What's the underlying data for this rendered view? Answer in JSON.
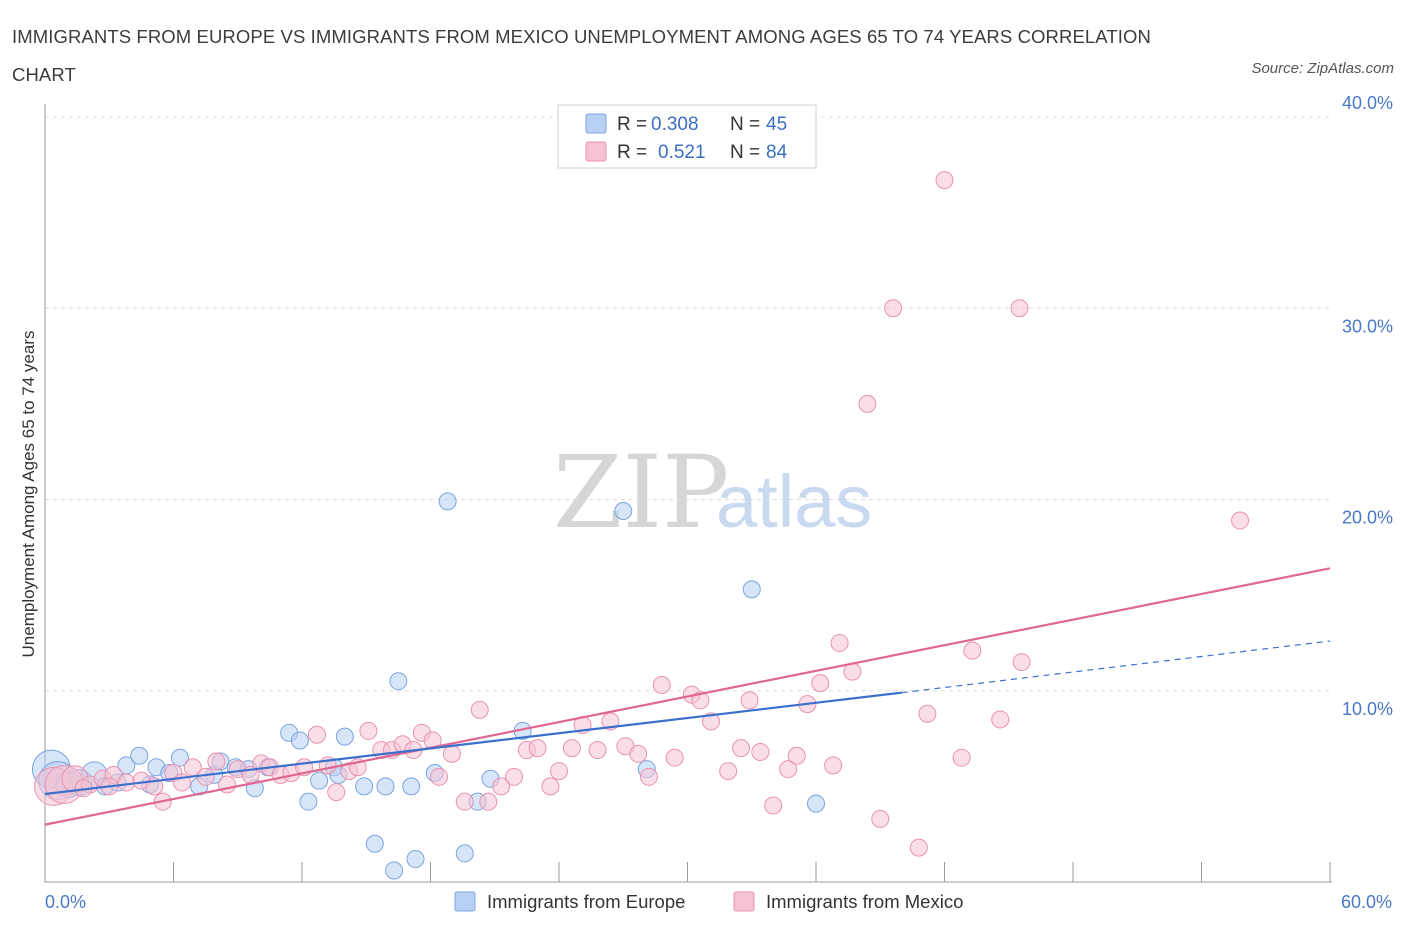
{
  "title": "IMMIGRANTS FROM EUROPE VS IMMIGRANTS FROM MEXICO UNEMPLOYMENT AMONG AGES 65 TO 74 YEARS CORRELATION CHART",
  "source": "Source: ZipAtlas.com",
  "watermark": {
    "zip": "ZIP",
    "atlas": "atlas"
  },
  "legend": {
    "europe": {
      "r_label": "R =",
      "r_value": "0.308",
      "n_label": "N =",
      "n_value": "45"
    },
    "mexico": {
      "r_label": "R =",
      "r_value": "0.521",
      "n_label": "N =",
      "n_value": "84"
    }
  },
  "colors": {
    "europe_fill": "#b7cff3",
    "europe_stroke": "#7ba4e0",
    "europe_line": "#3a70cc",
    "mexico_fill": "#f6c3d3",
    "mexico_stroke": "#e992b0",
    "mexico_line": "#e06791",
    "tick": "#4a78c8",
    "grid": "#dcdcdc"
  },
  "chart_data": {
    "type": "scatter",
    "xlabel": "",
    "ylabel": "Unemployment Among Ages 65 to 74 years",
    "xlim": [
      0,
      60
    ],
    "ylim": [
      0,
      40
    ],
    "y_ticks": [
      {
        "value": 10,
        "label": "10.0%"
      },
      {
        "value": 20,
        "label": "20.0%"
      },
      {
        "value": 30,
        "label": "30.0%"
      },
      {
        "value": 40,
        "label": "40.0%"
      }
    ],
    "x_tick_labels": [
      {
        "value": 0,
        "label": "0.0%"
      },
      {
        "value": 60,
        "label": "60.0%"
      }
    ],
    "x_minor_ticks": [
      0,
      6,
      12,
      18,
      24,
      30,
      36,
      42,
      48,
      54,
      60
    ],
    "series": [
      {
        "name": "Immigrants from Europe",
        "r": 0.308,
        "n": 45,
        "trend": {
          "x0": 0,
          "y0": 4.6,
          "x1": 40,
          "y1": 9.9,
          "dash_to_x": 60,
          "dash_to_y": 12.6
        },
        "points": [
          [
            0.3,
            5.9,
            "L"
          ],
          [
            0.6,
            5.3,
            "L"
          ],
          [
            1.1,
            5.1,
            "M"
          ],
          [
            1.6,
            5.2,
            "M"
          ],
          [
            2.3,
            5.6,
            "M"
          ],
          [
            2.8,
            5.0,
            "S"
          ],
          [
            3.4,
            5.2,
            "S"
          ],
          [
            3.8,
            6.1,
            "S"
          ],
          [
            4.4,
            6.6,
            "S"
          ],
          [
            4.9,
            5.1,
            "S"
          ],
          [
            5.2,
            6.0,
            "S"
          ],
          [
            5.8,
            5.7,
            "S"
          ],
          [
            6.3,
            6.5,
            "S"
          ],
          [
            7.2,
            5.0,
            "S"
          ],
          [
            7.9,
            5.6,
            "S"
          ],
          [
            8.2,
            6.3,
            "S"
          ],
          [
            8.9,
            6.0,
            "S"
          ],
          [
            9.5,
            5.9,
            "S"
          ],
          [
            9.8,
            4.9,
            "S"
          ],
          [
            10.4,
            6.0,
            "S"
          ],
          [
            11.4,
            7.8,
            "S"
          ],
          [
            11.9,
            7.4,
            "S"
          ],
          [
            12.3,
            4.2,
            "S"
          ],
          [
            12.8,
            5.3,
            "S"
          ],
          [
            13.5,
            6.0,
            "S"
          ],
          [
            13.7,
            5.6,
            "S"
          ],
          [
            14.0,
            7.6,
            "S"
          ],
          [
            14.9,
            5.0,
            "S"
          ],
          [
            15.4,
            2.0,
            "S"
          ],
          [
            15.9,
            5.0,
            "S"
          ],
          [
            16.3,
            0.6,
            "S"
          ],
          [
            16.5,
            10.5,
            "S"
          ],
          [
            17.1,
            5.0,
            "S"
          ],
          [
            17.3,
            1.2,
            "S"
          ],
          [
            18.2,
            5.7,
            "S"
          ],
          [
            18.8,
            19.9,
            "S"
          ],
          [
            19.6,
            1.5,
            "S"
          ],
          [
            20.2,
            4.2,
            "S"
          ],
          [
            20.8,
            5.4,
            "S"
          ],
          [
            22.3,
            7.9,
            "S"
          ],
          [
            27.0,
            19.4,
            "S"
          ],
          [
            28.1,
            5.9,
            "S"
          ],
          [
            33.0,
            15.3,
            "S"
          ],
          [
            36.0,
            4.1,
            "S"
          ],
          [
            0.9,
            5.0,
            "S"
          ]
        ]
      },
      {
        "name": "Immigrants from Mexico",
        "r": 0.521,
        "n": 84,
        "trend": {
          "x0": 0,
          "y0": 3.0,
          "x1": 60,
          "y1": 16.4
        },
        "points": [
          [
            0.4,
            5.0,
            "L"
          ],
          [
            0.9,
            5.1,
            "L"
          ],
          [
            1.4,
            5.4,
            "M"
          ],
          [
            2.1,
            5.1,
            "S"
          ],
          [
            2.7,
            5.4,
            "S"
          ],
          [
            3.2,
            5.6,
            "S"
          ],
          [
            3.8,
            5.2,
            "S"
          ],
          [
            4.5,
            5.3,
            "S"
          ],
          [
            5.1,
            5.0,
            "S"
          ],
          [
            5.5,
            4.2,
            "S"
          ],
          [
            6.0,
            5.7,
            "S"
          ],
          [
            6.4,
            5.2,
            "S"
          ],
          [
            6.9,
            6.0,
            "S"
          ],
          [
            7.5,
            5.5,
            "S"
          ],
          [
            8.0,
            6.3,
            "S"
          ],
          [
            8.5,
            5.1,
            "S"
          ],
          [
            9.0,
            5.9,
            "S"
          ],
          [
            9.6,
            5.6,
            "S"
          ],
          [
            10.1,
            6.2,
            "S"
          ],
          [
            10.5,
            6.0,
            "S"
          ],
          [
            11.0,
            5.6,
            "S"
          ],
          [
            11.5,
            5.7,
            "S"
          ],
          [
            12.1,
            6.0,
            "S"
          ],
          [
            12.7,
            7.7,
            "S"
          ],
          [
            13.2,
            6.1,
            "S"
          ],
          [
            13.6,
            4.7,
            "S"
          ],
          [
            14.2,
            5.8,
            "S"
          ],
          [
            14.6,
            6.0,
            "S"
          ],
          [
            15.1,
            7.9,
            "S"
          ],
          [
            15.7,
            6.9,
            "S"
          ],
          [
            16.2,
            6.9,
            "S"
          ],
          [
            16.7,
            7.2,
            "S"
          ],
          [
            17.2,
            6.9,
            "S"
          ],
          [
            17.6,
            7.8,
            "S"
          ],
          [
            18.1,
            7.4,
            "S"
          ],
          [
            18.4,
            5.5,
            "S"
          ],
          [
            19.0,
            6.7,
            "S"
          ],
          [
            19.6,
            4.2,
            "S"
          ],
          [
            20.3,
            9.0,
            "S"
          ],
          [
            20.7,
            4.2,
            "S"
          ],
          [
            21.3,
            5.0,
            "S"
          ],
          [
            21.9,
            5.5,
            "S"
          ],
          [
            22.5,
            6.9,
            "S"
          ],
          [
            23.0,
            7.0,
            "S"
          ],
          [
            23.6,
            5.0,
            "S"
          ],
          [
            24.0,
            5.8,
            "S"
          ],
          [
            24.6,
            7.0,
            "S"
          ],
          [
            25.1,
            8.2,
            "S"
          ],
          [
            25.8,
            6.9,
            "S"
          ],
          [
            26.4,
            8.4,
            "S"
          ],
          [
            27.1,
            7.1,
            "S"
          ],
          [
            27.7,
            6.7,
            "S"
          ],
          [
            28.2,
            5.5,
            "S"
          ],
          [
            28.8,
            10.3,
            "S"
          ],
          [
            29.4,
            6.5,
            "S"
          ],
          [
            30.2,
            9.8,
            "S"
          ],
          [
            30.6,
            9.5,
            "S"
          ],
          [
            31.1,
            8.4,
            "S"
          ],
          [
            31.9,
            5.8,
            "S"
          ],
          [
            32.5,
            7.0,
            "S"
          ],
          [
            32.9,
            9.5,
            "S"
          ],
          [
            33.4,
            6.8,
            "S"
          ],
          [
            34.0,
            4.0,
            "S"
          ],
          [
            34.7,
            5.9,
            "S"
          ],
          [
            35.1,
            6.6,
            "S"
          ],
          [
            35.6,
            9.3,
            "S"
          ],
          [
            36.2,
            10.4,
            "S"
          ],
          [
            36.8,
            6.1,
            "S"
          ],
          [
            37.1,
            12.5,
            "S"
          ],
          [
            37.7,
            11.0,
            "S"
          ],
          [
            38.4,
            25.0,
            "S"
          ],
          [
            39.0,
            3.3,
            "S"
          ],
          [
            39.6,
            30.0,
            "S"
          ],
          [
            40.8,
            1.8,
            "S"
          ],
          [
            41.2,
            8.8,
            "S"
          ],
          [
            42.0,
            36.7,
            "S"
          ],
          [
            42.8,
            6.5,
            "S"
          ],
          [
            43.3,
            12.1,
            "S"
          ],
          [
            44.6,
            8.5,
            "S"
          ],
          [
            45.5,
            30.0,
            "S"
          ],
          [
            45.6,
            11.5,
            "S"
          ],
          [
            55.8,
            18.9,
            "S"
          ],
          [
            1.8,
            4.9,
            "S"
          ],
          [
            3.0,
            5.0,
            "S"
          ]
        ]
      }
    ]
  },
  "bottom_legend": [
    "Immigrants from Europe",
    "Immigrants from Mexico"
  ]
}
